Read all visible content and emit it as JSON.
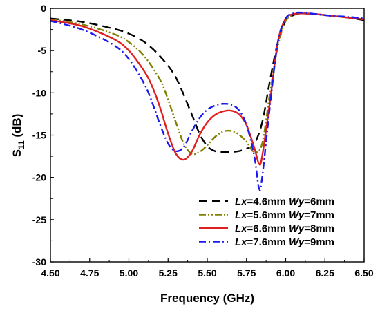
{
  "chart_data": {
    "type": "line",
    "xlabel": "Frequency (GHz)",
    "ylabel": {
      "main": "S",
      "sub": "11",
      "unit": " (dB)"
    },
    "xlim": [
      4.5,
      6.5
    ],
    "ylim": [
      -30,
      0
    ],
    "xticks": [
      4.5,
      4.75,
      5.0,
      5.25,
      5.5,
      5.75,
      6.0,
      6.25,
      6.5
    ],
    "xtick_labels": [
      "4.50",
      "4.75",
      "5.00",
      "5.25",
      "5.50",
      "5.75",
      "6.00",
      "6.25",
      "6.50"
    ],
    "yticks": [
      0,
      -5,
      -10,
      -15,
      -20,
      -25,
      -30
    ],
    "ytick_labels": [
      "0",
      "-5",
      "-10",
      "-15",
      "-20",
      "-25",
      "-30"
    ],
    "grid": false,
    "legend_position": "bottom-right",
    "series": [
      {
        "legend": {
          "lx_label": "Lx",
          "lx_value": "=4.6mm ",
          "wy_label": "Wy",
          "wy_value": "=6mm"
        },
        "color": "#000000",
        "style": "dash",
        "x": [
          4.5,
          4.7,
          4.9,
          5.0,
          5.1,
          5.2,
          5.3,
          5.4,
          5.45,
          5.5,
          5.55,
          5.6,
          5.65,
          5.7,
          5.75,
          5.8,
          5.85,
          5.9,
          5.95,
          6.0,
          6.05,
          6.1,
          6.2,
          6.3,
          6.4,
          6.5
        ],
        "values": [
          -1.2,
          -1.6,
          -2.4,
          -3.0,
          -4.0,
          -5.7,
          -8.2,
          -12.5,
          -14.8,
          -16.3,
          -16.9,
          -17.0,
          -17.0,
          -16.9,
          -16.6,
          -16.0,
          -13.5,
          -8.5,
          -4.0,
          -1.5,
          -0.8,
          -0.6,
          -0.7,
          -0.9,
          -1.1,
          -1.4
        ]
      },
      {
        "legend": {
          "lx_label": "Lx",
          "lx_value": "=5.6mm ",
          "wy_label": "Wy",
          "wy_value": "=7mm"
        },
        "color": "#808000",
        "style": "dash-dot-dot",
        "x": [
          4.5,
          4.7,
          4.9,
          5.0,
          5.1,
          5.2,
          5.25,
          5.3,
          5.35,
          5.4,
          5.45,
          5.5,
          5.55,
          5.6,
          5.65,
          5.7,
          5.75,
          5.8,
          5.85,
          5.9,
          5.95,
          6.0,
          6.05,
          6.1,
          6.2,
          6.3,
          6.4,
          6.5
        ],
        "values": [
          -1.3,
          -1.9,
          -3.0,
          -4.0,
          -5.7,
          -8.5,
          -10.8,
          -13.5,
          -16.0,
          -17.2,
          -17.0,
          -16.2,
          -15.2,
          -14.6,
          -14.5,
          -14.9,
          -15.8,
          -17.0,
          -16.0,
          -10.0,
          -4.5,
          -1.5,
          -0.8,
          -0.6,
          -0.7,
          -0.9,
          -1.1,
          -1.3
        ]
      },
      {
        "legend": {
          "lx_label": "Lx",
          "lx_value": "=6.6mm ",
          "wy_label": "Wy",
          "wy_value": "=8mm"
        },
        "color": "#e02020",
        "style": "solid",
        "x": [
          4.5,
          4.7,
          4.9,
          5.0,
          5.1,
          5.15,
          5.2,
          5.25,
          5.3,
          5.35,
          5.4,
          5.45,
          5.5,
          5.55,
          5.6,
          5.65,
          5.7,
          5.75,
          5.8,
          5.83,
          5.85,
          5.9,
          5.95,
          6.0,
          6.05,
          6.1,
          6.2,
          6.3,
          6.4,
          6.5
        ],
        "values": [
          -1.4,
          -2.1,
          -3.6,
          -5.0,
          -7.5,
          -9.3,
          -11.8,
          -14.8,
          -17.2,
          -17.9,
          -17.0,
          -15.0,
          -13.5,
          -12.6,
          -12.2,
          -12.1,
          -12.5,
          -13.8,
          -16.5,
          -18.4,
          -17.5,
          -11.0,
          -4.0,
          -1.2,
          -0.7,
          -0.6,
          -0.7,
          -0.9,
          -1.1,
          -1.3
        ]
      },
      {
        "legend": {
          "lx_label": "Lx",
          "lx_value": "=7.6mm ",
          "wy_label": "Wy",
          "wy_value": "=9mm"
        },
        "color": "#1a1aee",
        "style": "dash-dot",
        "x": [
          4.5,
          4.7,
          4.9,
          5.0,
          5.1,
          5.15,
          5.2,
          5.25,
          5.3,
          5.35,
          5.4,
          5.45,
          5.5,
          5.55,
          5.6,
          5.65,
          5.7,
          5.75,
          5.8,
          5.83,
          5.85,
          5.9,
          5.95,
          6.0,
          6.05,
          6.1,
          6.2,
          6.3,
          6.4,
          6.5
        ],
        "values": [
          -1.5,
          -2.5,
          -4.3,
          -6.0,
          -9.0,
          -11.2,
          -13.8,
          -16.0,
          -16.9,
          -16.4,
          -14.6,
          -13.0,
          -12.0,
          -11.5,
          -11.3,
          -11.4,
          -12.0,
          -13.8,
          -17.5,
          -21.3,
          -20.0,
          -11.5,
          -4.0,
          -1.2,
          -0.6,
          -0.5,
          -0.7,
          -0.9,
          -1.0,
          -1.2
        ]
      }
    ]
  }
}
